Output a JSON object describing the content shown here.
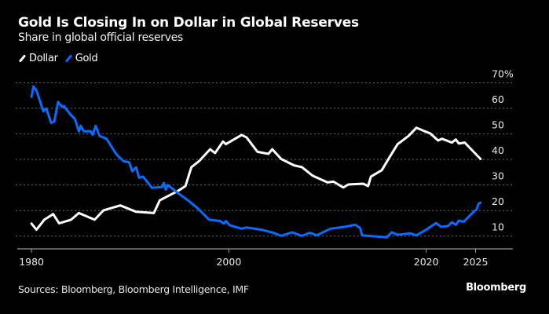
{
  "header": {
    "title": "Gold Is Closing In on Dollar in Global Reserves",
    "subtitle": "Share in global official reserves"
  },
  "footer": {
    "source": "Sources: Bloomberg, Bloomberg Intelligence, IMF",
    "brand": "Bloomberg"
  },
  "chart_data": {
    "type": "line",
    "title": "Gold Is Closing In on Dollar in Global Reserves",
    "subtitle": "Share in global official reserves",
    "xlabel": "",
    "ylabel": "",
    "xlim": [
      1978.4,
      2028.7
    ],
    "ylim": [
      5,
      72
    ],
    "x_ticks": [
      1980,
      2000,
      2020,
      2025
    ],
    "x_tick_labels": [
      "1980",
      "2000",
      "2020",
      "2025"
    ],
    "y_ticks": [
      10,
      20,
      30,
      40,
      50,
      60,
      70
    ],
    "y_tick_labels": [
      "10",
      "20",
      "30",
      "40",
      "50",
      "60",
      "70%"
    ],
    "y_axis_side": "right",
    "grid": "horizontal dotted",
    "legend_position": "top-left",
    "series": [
      {
        "name": "Dollar",
        "color": "#ffffff",
        "points": [
          [
            1980.0,
            14.9
          ],
          [
            1980.5,
            12.5
          ],
          [
            1981.3,
            16.4
          ],
          [
            1982.2,
            18.6
          ],
          [
            1982.8,
            15.0
          ],
          [
            1984.0,
            16.4
          ],
          [
            1984.8,
            19.0
          ],
          [
            1986.4,
            16.4
          ],
          [
            1987.3,
            20.1
          ],
          [
            1989.0,
            22.0
          ],
          [
            1990.6,
            19.5
          ],
          [
            1992.4,
            19.0
          ],
          [
            1993.0,
            24.0
          ],
          [
            1994.9,
            27.8
          ],
          [
            1995.6,
            29.6
          ],
          [
            1996.2,
            37.0
          ],
          [
            1997.0,
            39.4
          ],
          [
            1998.1,
            44.0
          ],
          [
            1998.6,
            42.5
          ],
          [
            1999.4,
            47.0
          ],
          [
            1999.7,
            46.0
          ],
          [
            2001.3,
            49.6
          ],
          [
            2001.8,
            48.6
          ],
          [
            2002.9,
            43.0
          ],
          [
            2004.0,
            42.2
          ],
          [
            2004.4,
            44.0
          ],
          [
            2005.3,
            40.2
          ],
          [
            2006.6,
            37.7
          ],
          [
            2007.4,
            37.0
          ],
          [
            2008.5,
            33.6
          ],
          [
            2010.0,
            31.0
          ],
          [
            2010.6,
            31.3
          ],
          [
            2011.6,
            29.0
          ],
          [
            2012.1,
            30.2
          ],
          [
            2013.6,
            30.5
          ],
          [
            2014.1,
            29.6
          ],
          [
            2014.4,
            33.3
          ],
          [
            2015.5,
            35.8
          ],
          [
            2016.3,
            41.0
          ],
          [
            2017.1,
            46.0
          ],
          [
            2018.2,
            49.2
          ],
          [
            2019.0,
            52.4
          ],
          [
            2020.0,
            50.8
          ],
          [
            2020.4,
            50.2
          ],
          [
            2021.2,
            47.4
          ],
          [
            2021.6,
            48.1
          ],
          [
            2022.6,
            46.6
          ],
          [
            2023.0,
            47.8
          ],
          [
            2023.3,
            46.2
          ],
          [
            2023.9,
            46.6
          ],
          [
            2024.8,
            43.0
          ],
          [
            2025.5,
            40.2
          ]
        ]
      },
      {
        "name": "Gold",
        "color": "#0a6cff",
        "points": [
          [
            1980.0,
            64.5
          ],
          [
            1980.2,
            68.6
          ],
          [
            1980.5,
            67.0
          ],
          [
            1981.2,
            58.9
          ],
          [
            1981.5,
            59.9
          ],
          [
            1982.0,
            54.3
          ],
          [
            1982.3,
            54.8
          ],
          [
            1982.7,
            62.5
          ],
          [
            1983.1,
            60.6
          ],
          [
            1983.3,
            60.9
          ],
          [
            1983.9,
            57.8
          ],
          [
            1984.4,
            55.8
          ],
          [
            1984.8,
            51.0
          ],
          [
            1985.0,
            53.2
          ],
          [
            1985.3,
            51.0
          ],
          [
            1986.0,
            51.0
          ],
          [
            1986.2,
            49.7
          ],
          [
            1986.5,
            53.2
          ],
          [
            1986.9,
            49.2
          ],
          [
            1987.6,
            48.1
          ],
          [
            1988.6,
            42.0
          ],
          [
            1989.3,
            39.4
          ],
          [
            1989.9,
            38.9
          ],
          [
            1990.2,
            35.4
          ],
          [
            1990.6,
            36.9
          ],
          [
            1990.9,
            32.8
          ],
          [
            1991.3,
            33.3
          ],
          [
            1992.2,
            28.9
          ],
          [
            1993.2,
            29.2
          ],
          [
            1993.4,
            30.8
          ],
          [
            1993.6,
            28.2
          ],
          [
            1993.8,
            30.0
          ],
          [
            1994.9,
            26.7
          ],
          [
            1996.0,
            23.6
          ],
          [
            1996.8,
            21.0
          ],
          [
            1998.0,
            16.4
          ],
          [
            1999.1,
            15.9
          ],
          [
            1999.5,
            14.9
          ],
          [
            1999.7,
            15.9
          ],
          [
            2000.1,
            14.2
          ],
          [
            2001.3,
            12.9
          ],
          [
            2001.8,
            13.4
          ],
          [
            2003.4,
            12.4
          ],
          [
            2004.5,
            11.3
          ],
          [
            2005.3,
            10.1
          ],
          [
            2006.4,
            11.5
          ],
          [
            2007.4,
            10.1
          ],
          [
            2008.2,
            11.3
          ],
          [
            2008.9,
            10.3
          ],
          [
            2010.3,
            12.9
          ],
          [
            2011.7,
            13.6
          ],
          [
            2012.8,
            14.4
          ],
          [
            2013.3,
            13.2
          ],
          [
            2013.5,
            10.3
          ],
          [
            2014.1,
            10.1
          ],
          [
            2016.0,
            9.5
          ],
          [
            2016.5,
            11.5
          ],
          [
            2017.1,
            10.5
          ],
          [
            2018.4,
            11.1
          ],
          [
            2019.0,
            10.3
          ],
          [
            2020.0,
            12.5
          ],
          [
            2021.0,
            15.1
          ],
          [
            2021.5,
            13.6
          ],
          [
            2022.2,
            13.9
          ],
          [
            2022.6,
            15.4
          ],
          [
            2023.0,
            14.4
          ],
          [
            2023.3,
            16.1
          ],
          [
            2023.8,
            15.6
          ],
          [
            2024.8,
            19.5
          ],
          [
            2025.1,
            20.5
          ],
          [
            2025.3,
            22.6
          ],
          [
            2025.5,
            23.1
          ]
        ]
      }
    ]
  }
}
